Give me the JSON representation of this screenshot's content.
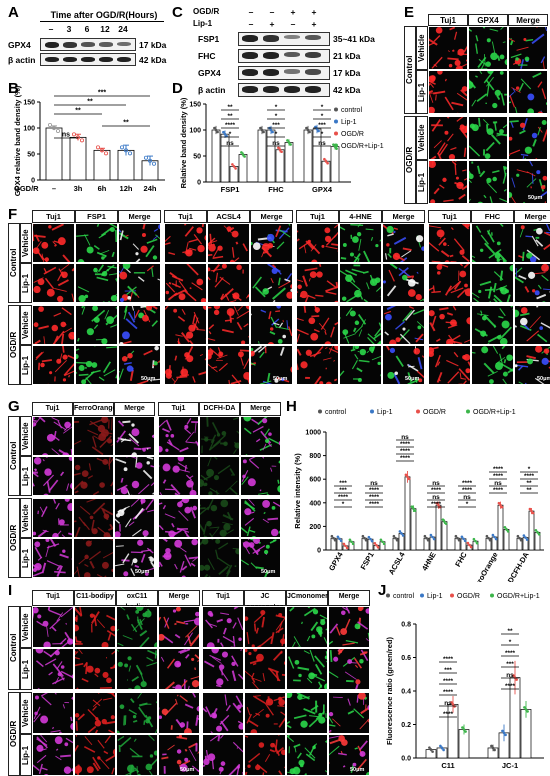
{
  "panelA": {
    "letter": "A",
    "header": "Time after OGD/R(Hours)",
    "lanes": [
      "–",
      "3",
      "6",
      "12",
      "24"
    ],
    "rows": [
      {
        "protein": "GPX4",
        "size": "17 kDa"
      },
      {
        "protein": "β actin",
        "size": "42 kDa"
      }
    ]
  },
  "panelB": {
    "letter": "B",
    "xhead": "OGD/R",
    "chart_data": {
      "type": "bar",
      "categories": [
        "–",
        "3h",
        "6h",
        "12h",
        "24h"
      ],
      "values": [
        100,
        82,
        57,
        57,
        37
      ],
      "errors": [
        4,
        6,
        4,
        10,
        9
      ],
      "ylabel": "GPX4 relative band density (%)",
      "ylim": [
        0,
        150
      ],
      "yticks": [
        0,
        50,
        100,
        150
      ],
      "colors": [
        "#999999",
        "#e8504a",
        "#e8504a",
        "#3a78c6",
        "#3a78c6"
      ],
      "significance": [
        "***",
        "**",
        "**",
        "**",
        "ns"
      ]
    }
  },
  "panelC": {
    "letter": "C",
    "treat": [
      {
        "name": "OGD/R",
        "signs": [
          "–",
          "–",
          "+",
          "+"
        ]
      },
      {
        "name": "Lip-1",
        "signs": [
          "–",
          "+",
          "–",
          "+"
        ]
      }
    ],
    "rows": [
      {
        "protein": "FSP1",
        "size": "35~41 kDa"
      },
      {
        "protein": "FHC",
        "size": "21 kDa"
      },
      {
        "protein": "GPX4",
        "size": "17 kDa"
      },
      {
        "protein": "β actin",
        "size": "42 kDa"
      }
    ]
  },
  "panelD": {
    "letter": "D",
    "chart_data": {
      "type": "bar",
      "categories": [
        "FSP1",
        "FHC",
        "GPX4"
      ],
      "series": [
        {
          "name": "control",
          "values": [
            100,
            100,
            100
          ],
          "color": "#555555"
        },
        {
          "name": "Lip-1",
          "values": [
            92,
            100,
            102
          ],
          "color": "#3a78c6"
        },
        {
          "name": "OGD/R",
          "values": [
            30,
            62,
            40
          ],
          "color": "#e8504a"
        },
        {
          "name": "OGD/R+Lip-1",
          "values": [
            53,
            76,
            68
          ],
          "color": "#3cb54a"
        }
      ],
      "ylabel": "Relative band density (%)",
      "ylim": [
        0,
        150
      ],
      "yticks": [
        0,
        50,
        100,
        150
      ],
      "significance": [
        "**",
        "**",
        "****",
        "*",
        "ns",
        "*",
        "*",
        "***",
        "*",
        "ns",
        "*",
        "*",
        "***",
        "*",
        "ns"
      ]
    }
  },
  "panelE": {
    "letter": "E",
    "columns": [
      "Tuj1",
      "GPX4",
      "Merge"
    ],
    "groups": [
      "Control",
      "OGD/R"
    ],
    "rows": [
      "Vehicle",
      "Lip-1",
      "Vehicle",
      "Lip-1"
    ],
    "scale": "50μm"
  },
  "panelF": {
    "letter": "F",
    "blocks": [
      {
        "columns": [
          "Tuj1",
          "FSP1",
          "Merge"
        ]
      },
      {
        "columns": [
          "Tuj1",
          "ACSL4",
          "Merge"
        ]
      },
      {
        "columns": [
          "Tuj1",
          "4-HNE",
          "Merge"
        ]
      },
      {
        "columns": [
          "Tuj1",
          "FHC",
          "Merge"
        ]
      }
    ],
    "groups": [
      "Control",
      "OGD/R"
    ],
    "rows": [
      "Vehicle",
      "Lip-1",
      "Vehicle",
      "Lip-1"
    ],
    "scale": "50μm"
  },
  "panelG": {
    "letter": "G",
    "columns": [
      "Tuj1",
      "FerroOrange",
      "Merge",
      "Tuj1",
      "DCFH-DA",
      "Merge"
    ],
    "groups": [
      "Control",
      "OGD/R"
    ],
    "rows": [
      "Vehicle",
      "Lip-1",
      "Vehicle",
      "Lip-1"
    ],
    "scale": "50μm"
  },
  "panelH": {
    "letter": "H",
    "chart_data": {
      "type": "bar",
      "categories": [
        "GPX4",
        "FSP1",
        "ACSL4",
        "4HNE",
        "FHC",
        "FerroOrange",
        "DCFH-DA"
      ],
      "series": [
        {
          "name": "control",
          "values": [
            100,
            100,
            100,
            100,
            100,
            100,
            100
          ],
          "color": "#555555"
        },
        {
          "name": "Lip-1",
          "values": [
            95,
            92,
            140,
            110,
            95,
            110,
            105
          ],
          "color": "#3a78c6"
        },
        {
          "name": "OGD/R",
          "values": [
            35,
            40,
            620,
            380,
            42,
            380,
            330
          ],
          "color": "#e8504a"
        },
        {
          "name": "OGD/R+Lip-1",
          "values": [
            70,
            70,
            350,
            240,
            75,
            175,
            150
          ],
          "color": "#3cb54a"
        }
      ],
      "ylabel": "Relative intensity (%)",
      "ylim": [
        0,
        1000
      ],
      "yticks": [
        0,
        200,
        400,
        600,
        800,
        1000
      ],
      "significance": [
        "***",
        "***",
        "****",
        "*",
        "ns",
        "****",
        "****",
        "****",
        "ns",
        "****",
        "****",
        "****",
        "ns",
        "****",
        "ns",
        "****",
        "****",
        "****",
        "ns",
        "*",
        "****",
        "****",
        "ns",
        "****",
        "*",
        "****",
        "**",
        "**",
        "****"
      ]
    }
  },
  "panelI": {
    "letter": "I",
    "columns": [
      "Tuj1",
      "C11-bodipy",
      "oxC11 bodipy",
      "Merge",
      "Tuj1",
      "JC aggregates",
      "JCmonomer",
      "Merge"
    ],
    "groups": [
      "Control",
      "OGD/R"
    ],
    "rows": [
      "Vehicle",
      "Lip-1",
      "Vehicle",
      "Lip-1"
    ],
    "scale": "50μm"
  },
  "panelJ": {
    "letter": "J",
    "chart_data": {
      "type": "bar",
      "categories": [
        "C11",
        "JC-1"
      ],
      "series": [
        {
          "name": "control",
          "values": [
            0.05,
            0.06
          ],
          "color": "#555555"
        },
        {
          "name": "Lip-1",
          "values": [
            0.06,
            0.15
          ],
          "color": "#3a78c6"
        },
        {
          "name": "OGD/R",
          "values": [
            0.32,
            0.48
          ],
          "color": "#e8504a"
        },
        {
          "name": "OGD/R+Lip-1",
          "values": [
            0.17,
            0.29
          ],
          "color": "#3cb54a"
        }
      ],
      "errors": [
        [
          0.01,
          0.02
        ],
        [
          0.01,
          0.05
        ],
        [
          0.05,
          0.1
        ],
        [
          0.03,
          0.05
        ]
      ],
      "ylabel": "Fluorescence ratio (green/red)",
      "ylim": [
        0,
        0.8
      ],
      "yticks": [
        0.0,
        0.2,
        0.4,
        0.6,
        0.8
      ],
      "significance": [
        "****",
        "***",
        "****",
        "****",
        "ns",
        "****",
        "**",
        "*",
        "****",
        "***",
        "ns",
        "****"
      ]
    }
  }
}
